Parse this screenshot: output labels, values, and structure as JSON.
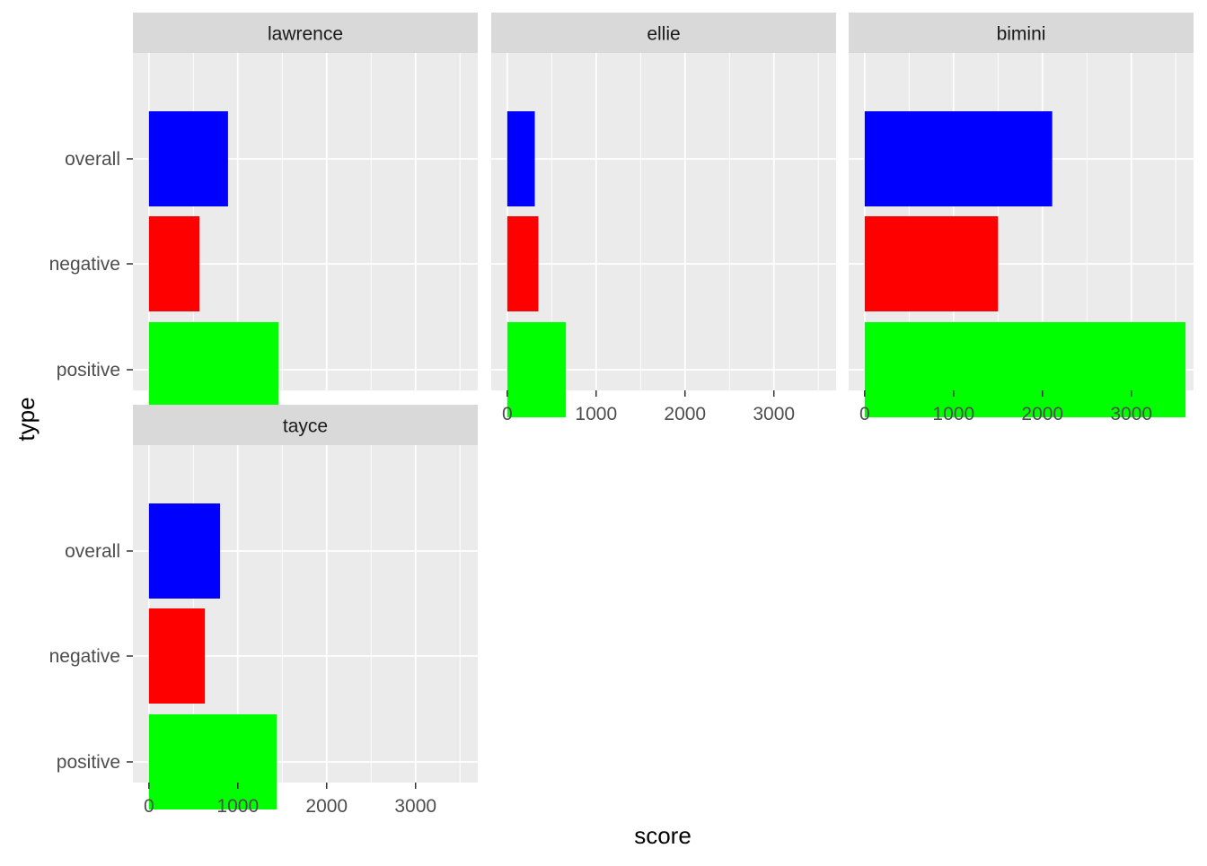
{
  "chart_data": {
    "type": "bar",
    "orientation": "horizontal",
    "layout": "facet_wrap",
    "xlabel": "score",
    "ylabel": "type",
    "xlim": [
      -180,
      3700
    ],
    "x_ticks": [
      0,
      1000,
      2000,
      3000
    ],
    "x_tick_labels": [
      "0",
      "1000",
      "2000",
      "3000"
    ],
    "categories": [
      "overall",
      "negative",
      "positive"
    ],
    "grid": true,
    "colors": {
      "overall": "#0000FF",
      "negative": "#FF0000",
      "positive": "#00FF00",
      "panel_background": "#EBEBEB",
      "strip_background": "#D9D9D9",
      "grid": "#FFFFFF"
    },
    "facets": [
      {
        "name": "lawrence",
        "values": [
          890,
          570,
          1460
        ]
      },
      {
        "name": "ellie",
        "values": [
          310,
          350,
          660
        ]
      },
      {
        "name": "bimini",
        "values": [
          2110,
          1500,
          3610
        ]
      },
      {
        "name": "tayce",
        "values": [
          800,
          630,
          1440
        ]
      }
    ]
  }
}
